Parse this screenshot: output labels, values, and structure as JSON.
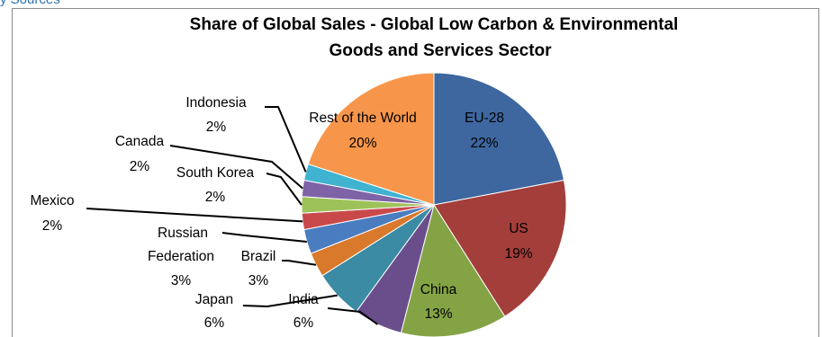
{
  "top_text": "y Sources",
  "chart_data": {
    "type": "pie",
    "title_lines": [
      "Share of Global Sales - Global Low Carbon & Environmental",
      "Goods and Services Sector"
    ],
    "slices": [
      {
        "name": "EU-28",
        "pct_label": "22%",
        "value": 22,
        "color": "#3e67a0"
      },
      {
        "name": "US",
        "pct_label": "19%",
        "value": 19,
        "color": "#a33e3b"
      },
      {
        "name": "China",
        "pct_label": "13%",
        "value": 13,
        "color": "#84a345"
      },
      {
        "name": "India",
        "pct_label": "6%",
        "value": 6,
        "color": "#6a4e8c"
      },
      {
        "name": "Japan",
        "pct_label": "6%",
        "value": 6,
        "color": "#3a8ba3"
      },
      {
        "name": "Brazil",
        "pct_label": "3%",
        "value": 3,
        "color": "#d8792c"
      },
      {
        "name": "Russian Federation",
        "pct_label": "3%",
        "value": 3,
        "color": "#4a7cc0"
      },
      {
        "name": "Mexico",
        "pct_label": "2%",
        "value": 2,
        "color": "#c9494b"
      },
      {
        "name": "South Korea",
        "pct_label": "2%",
        "value": 2,
        "color": "#9ec25a"
      },
      {
        "name": "Canada",
        "pct_label": "2%",
        "value": 2,
        "color": "#7e63a6"
      },
      {
        "name": "Indonesia",
        "pct_label": "2%",
        "value": 2,
        "color": "#3fb3d0"
      },
      {
        "name": "Rest of the World",
        "pct_label": "20%",
        "value": 20,
        "color": "#f7964a"
      }
    ]
  }
}
